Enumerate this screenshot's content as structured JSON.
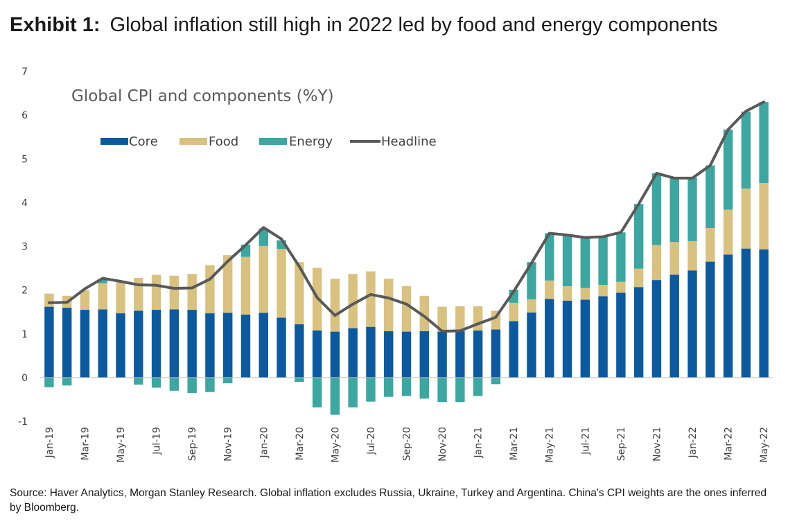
{
  "title_label": "Exhibit 1:",
  "title_text": "Global inflation still high in 2022 led by food and energy components",
  "source": "Source: Haver Analytics, Morgan Stanley Research. Global inflation excludes Russia, Ukraine, Turkey and Argentina. China's CPI weights are the ones inferred by Bloomberg.",
  "colors": {
    "core": "#0b5aa0",
    "food": "#d9c17f",
    "energy": "#3ba7a0",
    "headline": "#595959"
  },
  "chart_data": {
    "type": "bar",
    "stacked": true,
    "subtitle": "Global CPI and components (%Y)",
    "categories": [
      "Jan-19",
      "Feb-19",
      "Mar-19",
      "Apr-19",
      "May-19",
      "Jun-19",
      "Jul-19",
      "Aug-19",
      "Sep-19",
      "Oct-19",
      "Nov-19",
      "Dec-19",
      "Jan-20",
      "Feb-20",
      "Mar-20",
      "Apr-20",
      "May-20",
      "Jun-20",
      "Jul-20",
      "Aug-20",
      "Sep-20",
      "Oct-20",
      "Nov-20",
      "Dec-20",
      "Jan-21",
      "Feb-21",
      "Mar-21",
      "Apr-21",
      "May-21",
      "Jun-21",
      "Jul-21",
      "Aug-21",
      "Sep-21",
      "Oct-21",
      "Nov-21",
      "Dec-21",
      "Jan-22",
      "Feb-22",
      "Mar-22",
      "Apr-22",
      "May-22"
    ],
    "x_tick_labels": [
      "Jan-19",
      "",
      "Mar-19",
      "",
      "May-19",
      "",
      "Jul-19",
      "",
      "Sep-19",
      "",
      "Nov-19",
      "",
      "Jan-20",
      "",
      "Mar-20",
      "",
      "May-20",
      "",
      "Jul-20",
      "",
      "Sep-20",
      "",
      "Nov-20",
      "",
      "Jan-21",
      "",
      "Mar-21",
      "",
      "May-21",
      "",
      "Jul-21",
      "",
      "Sep-21",
      "",
      "Nov-21",
      "",
      "Jan-22",
      "",
      "Mar-22",
      "",
      "May-22"
    ],
    "ylim": [
      -1,
      7
    ],
    "yticks": [
      -1,
      0,
      1,
      2,
      3,
      4,
      5,
      6,
      7
    ],
    "legend": [
      "Core",
      "Food",
      "Energy",
      "Headline"
    ],
    "legend_position": "top-left",
    "series": [
      {
        "name": "Core",
        "kind": "bar",
        "values": [
          1.62,
          1.6,
          1.55,
          1.56,
          1.47,
          1.53,
          1.55,
          1.56,
          1.55,
          1.47,
          1.48,
          1.44,
          1.48,
          1.37,
          1.22,
          1.08,
          1.05,
          1.13,
          1.16,
          1.06,
          1.05,
          1.06,
          1.05,
          1.06,
          1.08,
          1.1,
          1.29,
          1.49,
          1.8,
          1.76,
          1.78,
          1.86,
          1.94,
          2.07,
          2.23,
          2.35,
          2.45,
          2.65,
          2.81,
          2.95,
          2.93
        ]
      },
      {
        "name": "Food",
        "kind": "bar",
        "values": [
          0.3,
          0.27,
          0.45,
          0.6,
          0.72,
          0.75,
          0.8,
          0.77,
          0.82,
          1.1,
          1.32,
          1.32,
          1.53,
          1.57,
          1.42,
          1.43,
          1.21,
          1.24,
          1.27,
          1.2,
          1.04,
          0.81,
          0.57,
          0.57,
          0.55,
          0.43,
          0.42,
          0.3,
          0.42,
          0.33,
          0.27,
          0.26,
          0.25,
          0.42,
          0.8,
          0.75,
          0.67,
          0.77,
          1.03,
          1.37,
          1.52
        ]
      },
      {
        "name": "Energy",
        "kind": "bar",
        "values": [
          -0.22,
          -0.18,
          0.0,
          0.1,
          0.0,
          -0.16,
          -0.23,
          -0.3,
          -0.35,
          -0.33,
          -0.13,
          0.28,
          0.4,
          0.2,
          -0.1,
          -0.68,
          -0.85,
          -0.68,
          -0.55,
          -0.44,
          -0.42,
          -0.48,
          -0.56,
          -0.56,
          -0.42,
          -0.15,
          0.3,
          0.85,
          1.08,
          1.17,
          1.15,
          1.1,
          1.13,
          1.48,
          1.64,
          1.47,
          1.45,
          1.43,
          1.83,
          1.76,
          1.85
        ]
      },
      {
        "name": "Headline",
        "kind": "line",
        "values": [
          1.71,
          1.72,
          2.03,
          2.27,
          2.2,
          2.12,
          2.11,
          2.04,
          2.05,
          2.25,
          2.66,
          3.03,
          3.43,
          3.17,
          2.54,
          1.83,
          1.42,
          1.68,
          1.9,
          1.82,
          1.68,
          1.4,
          1.06,
          1.07,
          1.23,
          1.38,
          1.97,
          2.62,
          3.3,
          3.26,
          3.2,
          3.22,
          3.32,
          3.97,
          4.67,
          4.56,
          4.56,
          4.85,
          5.67,
          6.09,
          6.3
        ]
      }
    ]
  }
}
